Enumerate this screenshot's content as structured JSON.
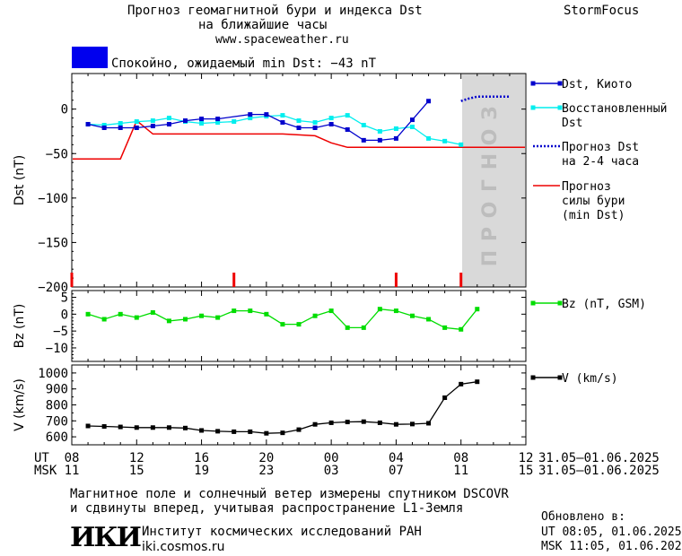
{
  "header": {
    "title_line1": "Прогноз геомагнитной бури и индекса Dst",
    "title_line2": "на ближайшие часы",
    "url": "www.spaceweather.ru",
    "brand": "StormFocus"
  },
  "status": {
    "text": "Спокойно, ожидаемый min Dst: −43 nT",
    "color": "#0000ee"
  },
  "forecast_label": "ПРОГНОЗ",
  "footer": {
    "note_line1": "Магнитное поле и солнечный ветер измерены спутником DSCOVR",
    "note_line2": "и сдвинуты вперед, учитывая распространение L1-Земля",
    "logo_text": "ИКИ",
    "institute": "Институт космических исследований РАН",
    "institute_url": "iki.cosmos.ru",
    "updated_label": "Обновлено в:",
    "updated_ut": "UT   08:05, 01.06.2025",
    "updated_msk": "MSK 11:05, 01.06.2025"
  },
  "time_axis": {
    "ut_label": "UT",
    "msk_label": "MSK",
    "ut_ticks": [
      "08",
      "12",
      "16",
      "20",
      "00",
      "04",
      "08",
      "12"
    ],
    "msk_ticks": [
      "11",
      "15",
      "19",
      "23",
      "03",
      "07",
      "11",
      "15"
    ],
    "ut_range": "31.05–01.06.2025",
    "msk_range": "31.05–01.06.2025"
  },
  "chart_data": [
    {
      "type": "line",
      "ylabel": "Dst (nT)",
      "ylim": [
        -200,
        40
      ],
      "yticks": [
        "0",
        "−50",
        "−100",
        "−150",
        "−200"
      ],
      "ytick_values": [
        0,
        -50,
        -100,
        -150,
        -200
      ],
      "series": [
        {
          "name": "Dst, Киото",
          "color": "#0000cc",
          "x": [
            9,
            10,
            11,
            12,
            13,
            14,
            15,
            16,
            17,
            19,
            20,
            21,
            22,
            23,
            24,
            25,
            26,
            27,
            28,
            29,
            30,
            31
          ],
          "y": [
            -17,
            -21,
            -21,
            -21,
            -19,
            -17,
            -13,
            -11,
            -11,
            -6,
            -6,
            -15,
            -21,
            -21,
            -17,
            -23,
            -35,
            -35,
            -33,
            -12,
            9,
            null
          ]
        },
        {
          "name": "Восстановленный Dst",
          "color": "#00eeee",
          "x": [
            9,
            10,
            11,
            12,
            13,
            14,
            15,
            16,
            17,
            18,
            19,
            20,
            21,
            22,
            23,
            24,
            25,
            26,
            27,
            28,
            29,
            30,
            31,
            32
          ],
          "y": [
            -17,
            -18,
            -16,
            -14,
            -13,
            -10,
            -14,
            -16,
            -15,
            -14,
            -10,
            -8,
            -7,
            -13,
            -15,
            -10,
            -7,
            -18,
            -25,
            -22,
            -20,
            -33,
            -36,
            -40
          ]
        },
        {
          "name": "Прогноз Dst на 2-4 часа",
          "color": "#0000cc",
          "x": [
            32,
            32.5,
            33,
            34,
            35
          ],
          "y": [
            9,
            12,
            14,
            14,
            14
          ]
        },
        {
          "name": "Прогноз силы бури (min Dst)",
          "color": "#ee0000",
          "x": [
            8,
            9,
            10,
            11,
            12,
            13,
            14,
            15,
            16,
            17,
            18,
            19,
            20,
            21,
            22,
            23,
            24,
            25,
            26,
            27,
            28,
            29,
            30,
            31,
            32,
            33,
            34,
            35,
            36
          ],
          "y": [
            -56,
            -56,
            -56,
            -56,
            -13,
            -28,
            -28,
            -28,
            -28,
            -28,
            -28,
            -28,
            -28,
            -28,
            -29,
            -30,
            -38,
            -43,
            -43,
            -43,
            -43,
            -43,
            -43,
            -43,
            -43,
            -43,
            -43,
            -43,
            -43
          ]
        }
      ],
      "forecast_from_x": 32,
      "markers_x": [
        8,
        18,
        28,
        32
      ]
    },
    {
      "type": "line",
      "ylabel": "Bz (nT)",
      "ylim": [
        -14,
        7
      ],
      "yticks": [
        "5",
        "0",
        "−5",
        "−10"
      ],
      "ytick_values": [
        5,
        0,
        -5,
        -10
      ],
      "series": [
        {
          "name": "Bz (nT, GSM)",
          "color": "#00dd00",
          "x": [
            9,
            10,
            11,
            12,
            13,
            14,
            15,
            16,
            17,
            18,
            19,
            20,
            21,
            22,
            23,
            24,
            25,
            26,
            27,
            28,
            29,
            30,
            31,
            32,
            33
          ],
          "y": [
            0,
            -1.5,
            0,
            -1,
            0.5,
            -2,
            -1.5,
            -0.5,
            -1,
            1,
            1,
            0,
            -3,
            -3,
            -0.5,
            1,
            -4,
            -4,
            1.5,
            1,
            -0.5,
            -1.5,
            -4,
            -4.5,
            1.5
          ]
        }
      ]
    },
    {
      "type": "line",
      "ylabel": "V (km/s)",
      "ylim": [
        550,
        1050
      ],
      "yticks": [
        "1000",
        "900",
        "800",
        "700",
        "600"
      ],
      "ytick_values": [
        1000,
        900,
        800,
        700,
        600
      ],
      "series": [
        {
          "name": "V (km/s)",
          "color": "#000000",
          "x": [
            9,
            10,
            11,
            12,
            13,
            14,
            15,
            16,
            17,
            18,
            19,
            20,
            21,
            22,
            23,
            24,
            25,
            26,
            27,
            28,
            29,
            30,
            31,
            32,
            33
          ],
          "y": [
            668,
            665,
            662,
            658,
            658,
            658,
            655,
            640,
            635,
            632,
            632,
            622,
            625,
            645,
            678,
            688,
            693,
            695,
            688,
            678,
            680,
            685,
            845,
            930,
            945
          ]
        }
      ]
    }
  ]
}
